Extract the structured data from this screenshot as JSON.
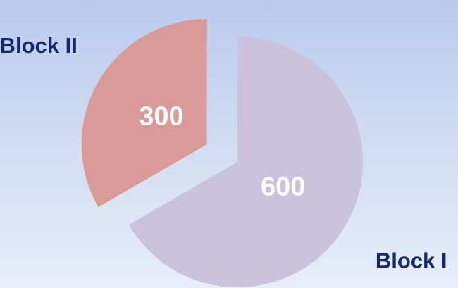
{
  "chart_data": {
    "type": "pie",
    "categories": [
      "Block I",
      "Block II"
    ],
    "values": [
      600,
      300
    ],
    "colors": [
      "#cbc3dd",
      "#d99a98"
    ]
  }
}
